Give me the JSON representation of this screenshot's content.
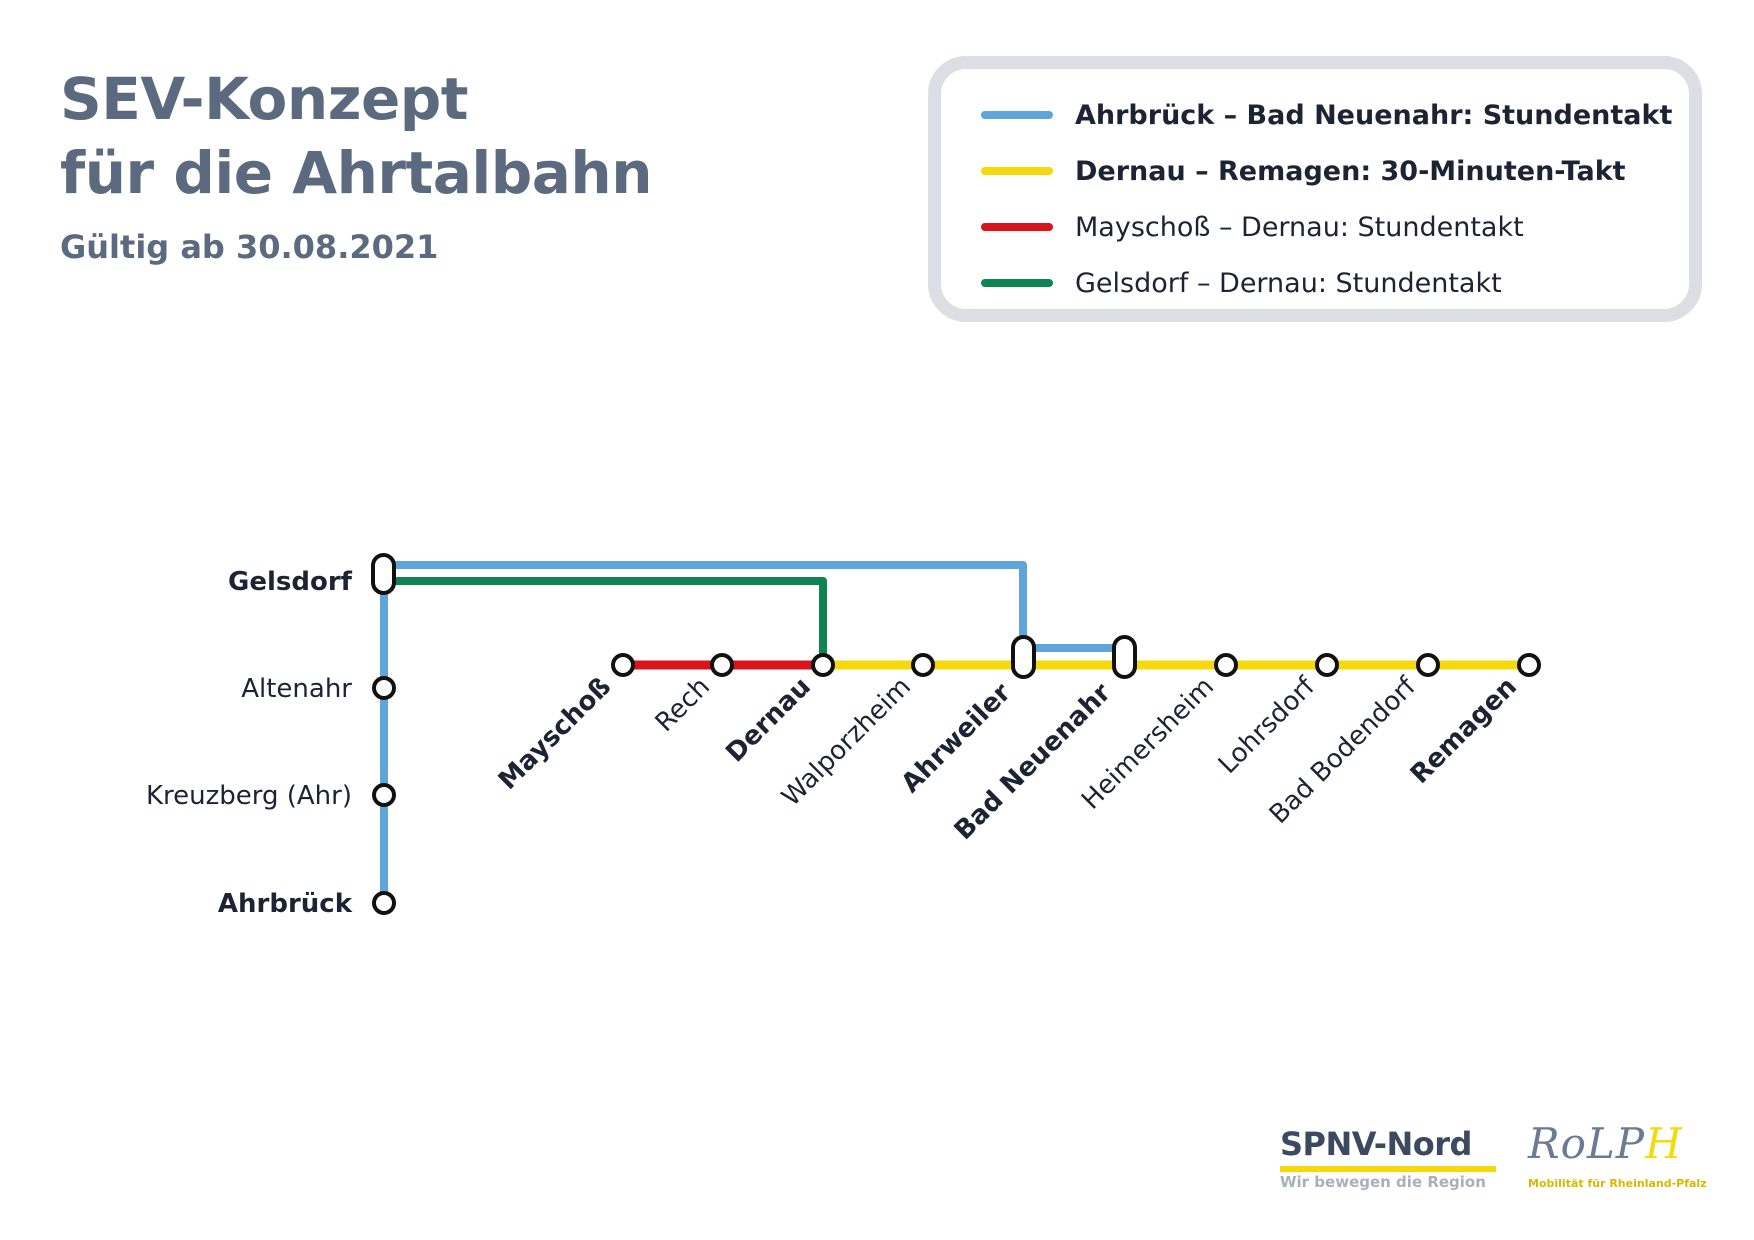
{
  "header": {
    "title_line1": "SEV-Konzept",
    "title_line2": "für die Ahrtalbahn",
    "subtitle": "Gültig ab 30.08.2021"
  },
  "legend": {
    "items": [
      {
        "label": "Ahrbrück – Bad Neuenahr: Stundentakt",
        "color": "#5fa5da",
        "bold": true
      },
      {
        "label": "Dernau – Remagen: 30-Minuten-Takt",
        "color": "#f5d90a",
        "bold": true
      },
      {
        "label": "Mayschoß – Dernau: Stundentakt",
        "color": "#d8141c",
        "bold": false
      },
      {
        "label": "Gelsdorf – Dernau: Stundentakt",
        "color": "#0e8454",
        "bold": false
      }
    ]
  },
  "stations": {
    "gelsdorf": "Gelsdorf",
    "altenahr": "Altenahr",
    "kreuzberg": "Kreuzberg (Ahr)",
    "ahrbrueck": "Ahrbrück",
    "mayschoss": "Mayschoß",
    "rech": "Rech",
    "dernau": "Dernau",
    "walporzheim": "Walporzheim",
    "ahrweiler": "Ahrweiler",
    "bad_neuenahr": "Bad Neuenahr",
    "heimersheim": "Heimersheim",
    "lohrsdorf": "Lohrsdorf",
    "bad_bodendorf": "Bad Bodendorf",
    "remagen": "Remagen"
  },
  "line_colors": {
    "blue": "#5fa5da",
    "yellow": "#f5d90a",
    "red": "#d8141c",
    "green": "#0e8454"
  },
  "logos": {
    "spnv_name": "SPNV-Nord",
    "spnv_tagline": "Wir bewegen die Region",
    "rolph_name": "RoLPH",
    "rolph_tagline": "Mobilität für Rheinland-Pfalz"
  }
}
